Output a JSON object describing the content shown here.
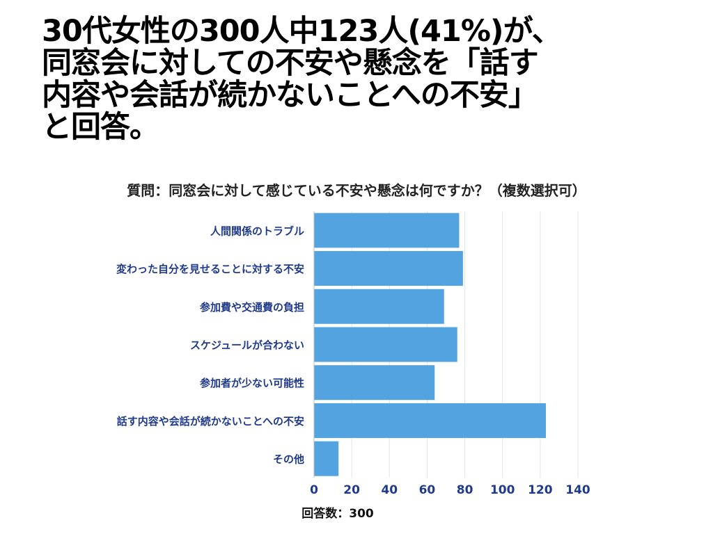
{
  "headline": {
    "lines": [
      "30代女性の300人中123人(41%)が、",
      "同窓会に対しての不安や懸念を「話す",
      "内容や会話が続かないことへの不安」",
      "と回答。"
    ]
  },
  "chart_data": {
    "type": "bar",
    "orientation": "horizontal",
    "title": "質問：同窓会に対して感じている不安や懸念は何ですか？（複数選択可）",
    "xlabel": "回答数：300",
    "ylabel": "",
    "categories": [
      "人間関係のトラブル",
      "変わった自分を見せることに対する不安",
      "参加費や交通費の負担",
      "スケジュールが合わない",
      "参加者が少ない可能性",
      "話す内容や会話が続かないことへの不安",
      "その他"
    ],
    "values": [
      77,
      79,
      69,
      76,
      64,
      123,
      13
    ],
    "xlim": [
      0,
      140
    ],
    "xticks": [
      0,
      20,
      40,
      60,
      80,
      100,
      120,
      140
    ],
    "grid": true,
    "bar_color": "#52a3e0",
    "label_color": "#1f3a8a"
  }
}
